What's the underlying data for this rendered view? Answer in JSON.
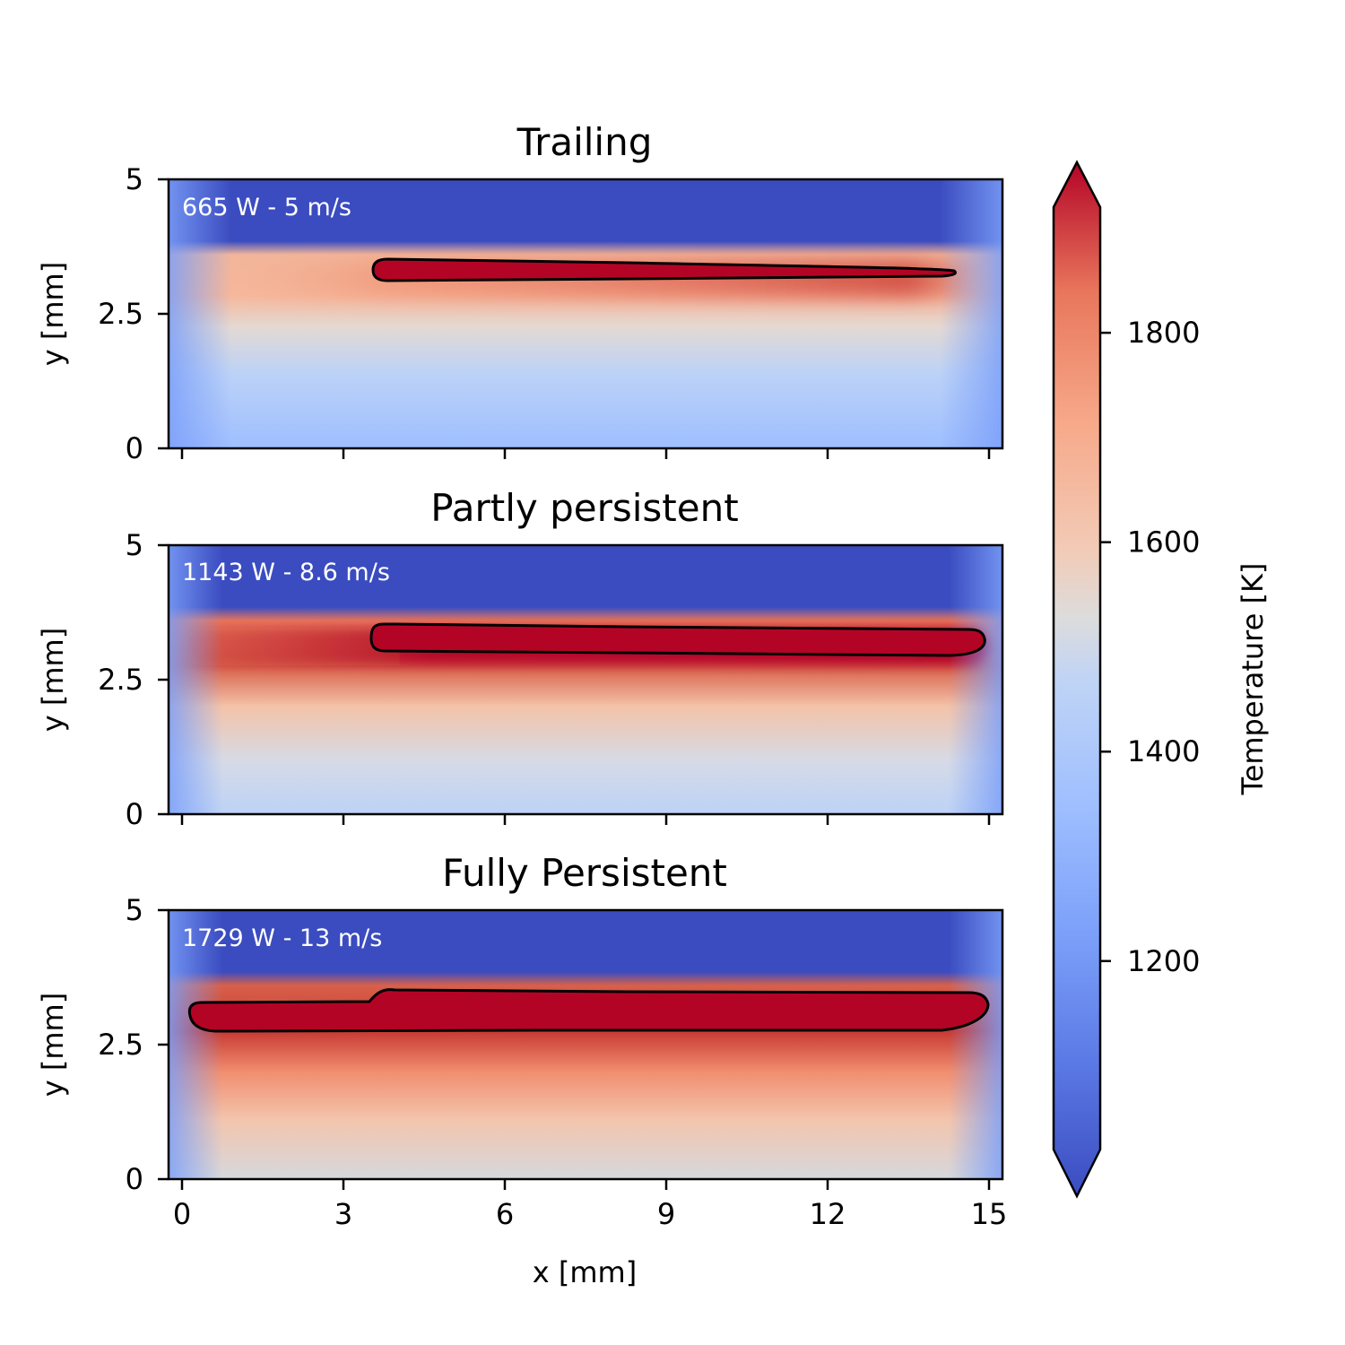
{
  "colors": {
    "cold": "#3b4cc0",
    "mid": "#dddddd",
    "hot": "#b40426",
    "contour": "#000000"
  },
  "chart_data": {
    "type": "heatmap",
    "xlabel": "x [mm]",
    "ylabel": "y [mm]",
    "xlim": [
      -0.25,
      15.25
    ],
    "ylim": [
      0,
      5
    ],
    "xticks": [
      0,
      3,
      6,
      9,
      12,
      15
    ],
    "xtick_labels": [
      "0",
      "3",
      "6",
      "9",
      "12",
      "15"
    ],
    "yticks": [
      0,
      2.5,
      5
    ],
    "ytick_labels": [
      "0",
      "2.5",
      "5"
    ],
    "colorbar": {
      "label": "Temperature [K]",
      "colormap": "coolwarm",
      "range": [
        1020,
        1920
      ],
      "ticks": [
        1200,
        1400,
        1600,
        1800
      ],
      "tick_labels": [
        "1200",
        "1400",
        "1600",
        "1800"
      ],
      "extend": "both"
    },
    "panels": [
      {
        "title": "Trailing",
        "annotation": "665 W - 5 m/s",
        "level": 0,
        "melt_pool_x": [
          3.6,
          14.4
        ],
        "melt_pool_y": [
          3.1,
          3.5
        ]
      },
      {
        "title": "Partly persistent",
        "annotation": "1143 W - 8.6 m/s",
        "level": 1,
        "melt_pool_x": [
          3.5,
          14.9
        ],
        "melt_pool_y": [
          3.0,
          3.55
        ]
      },
      {
        "title": "Fully Persistent",
        "annotation": "1729 W - 13 m/s",
        "level": 2,
        "melt_pool_x": [
          0.15,
          15.0
        ],
        "melt_pool_y": [
          2.77,
          3.52
        ]
      }
    ]
  }
}
